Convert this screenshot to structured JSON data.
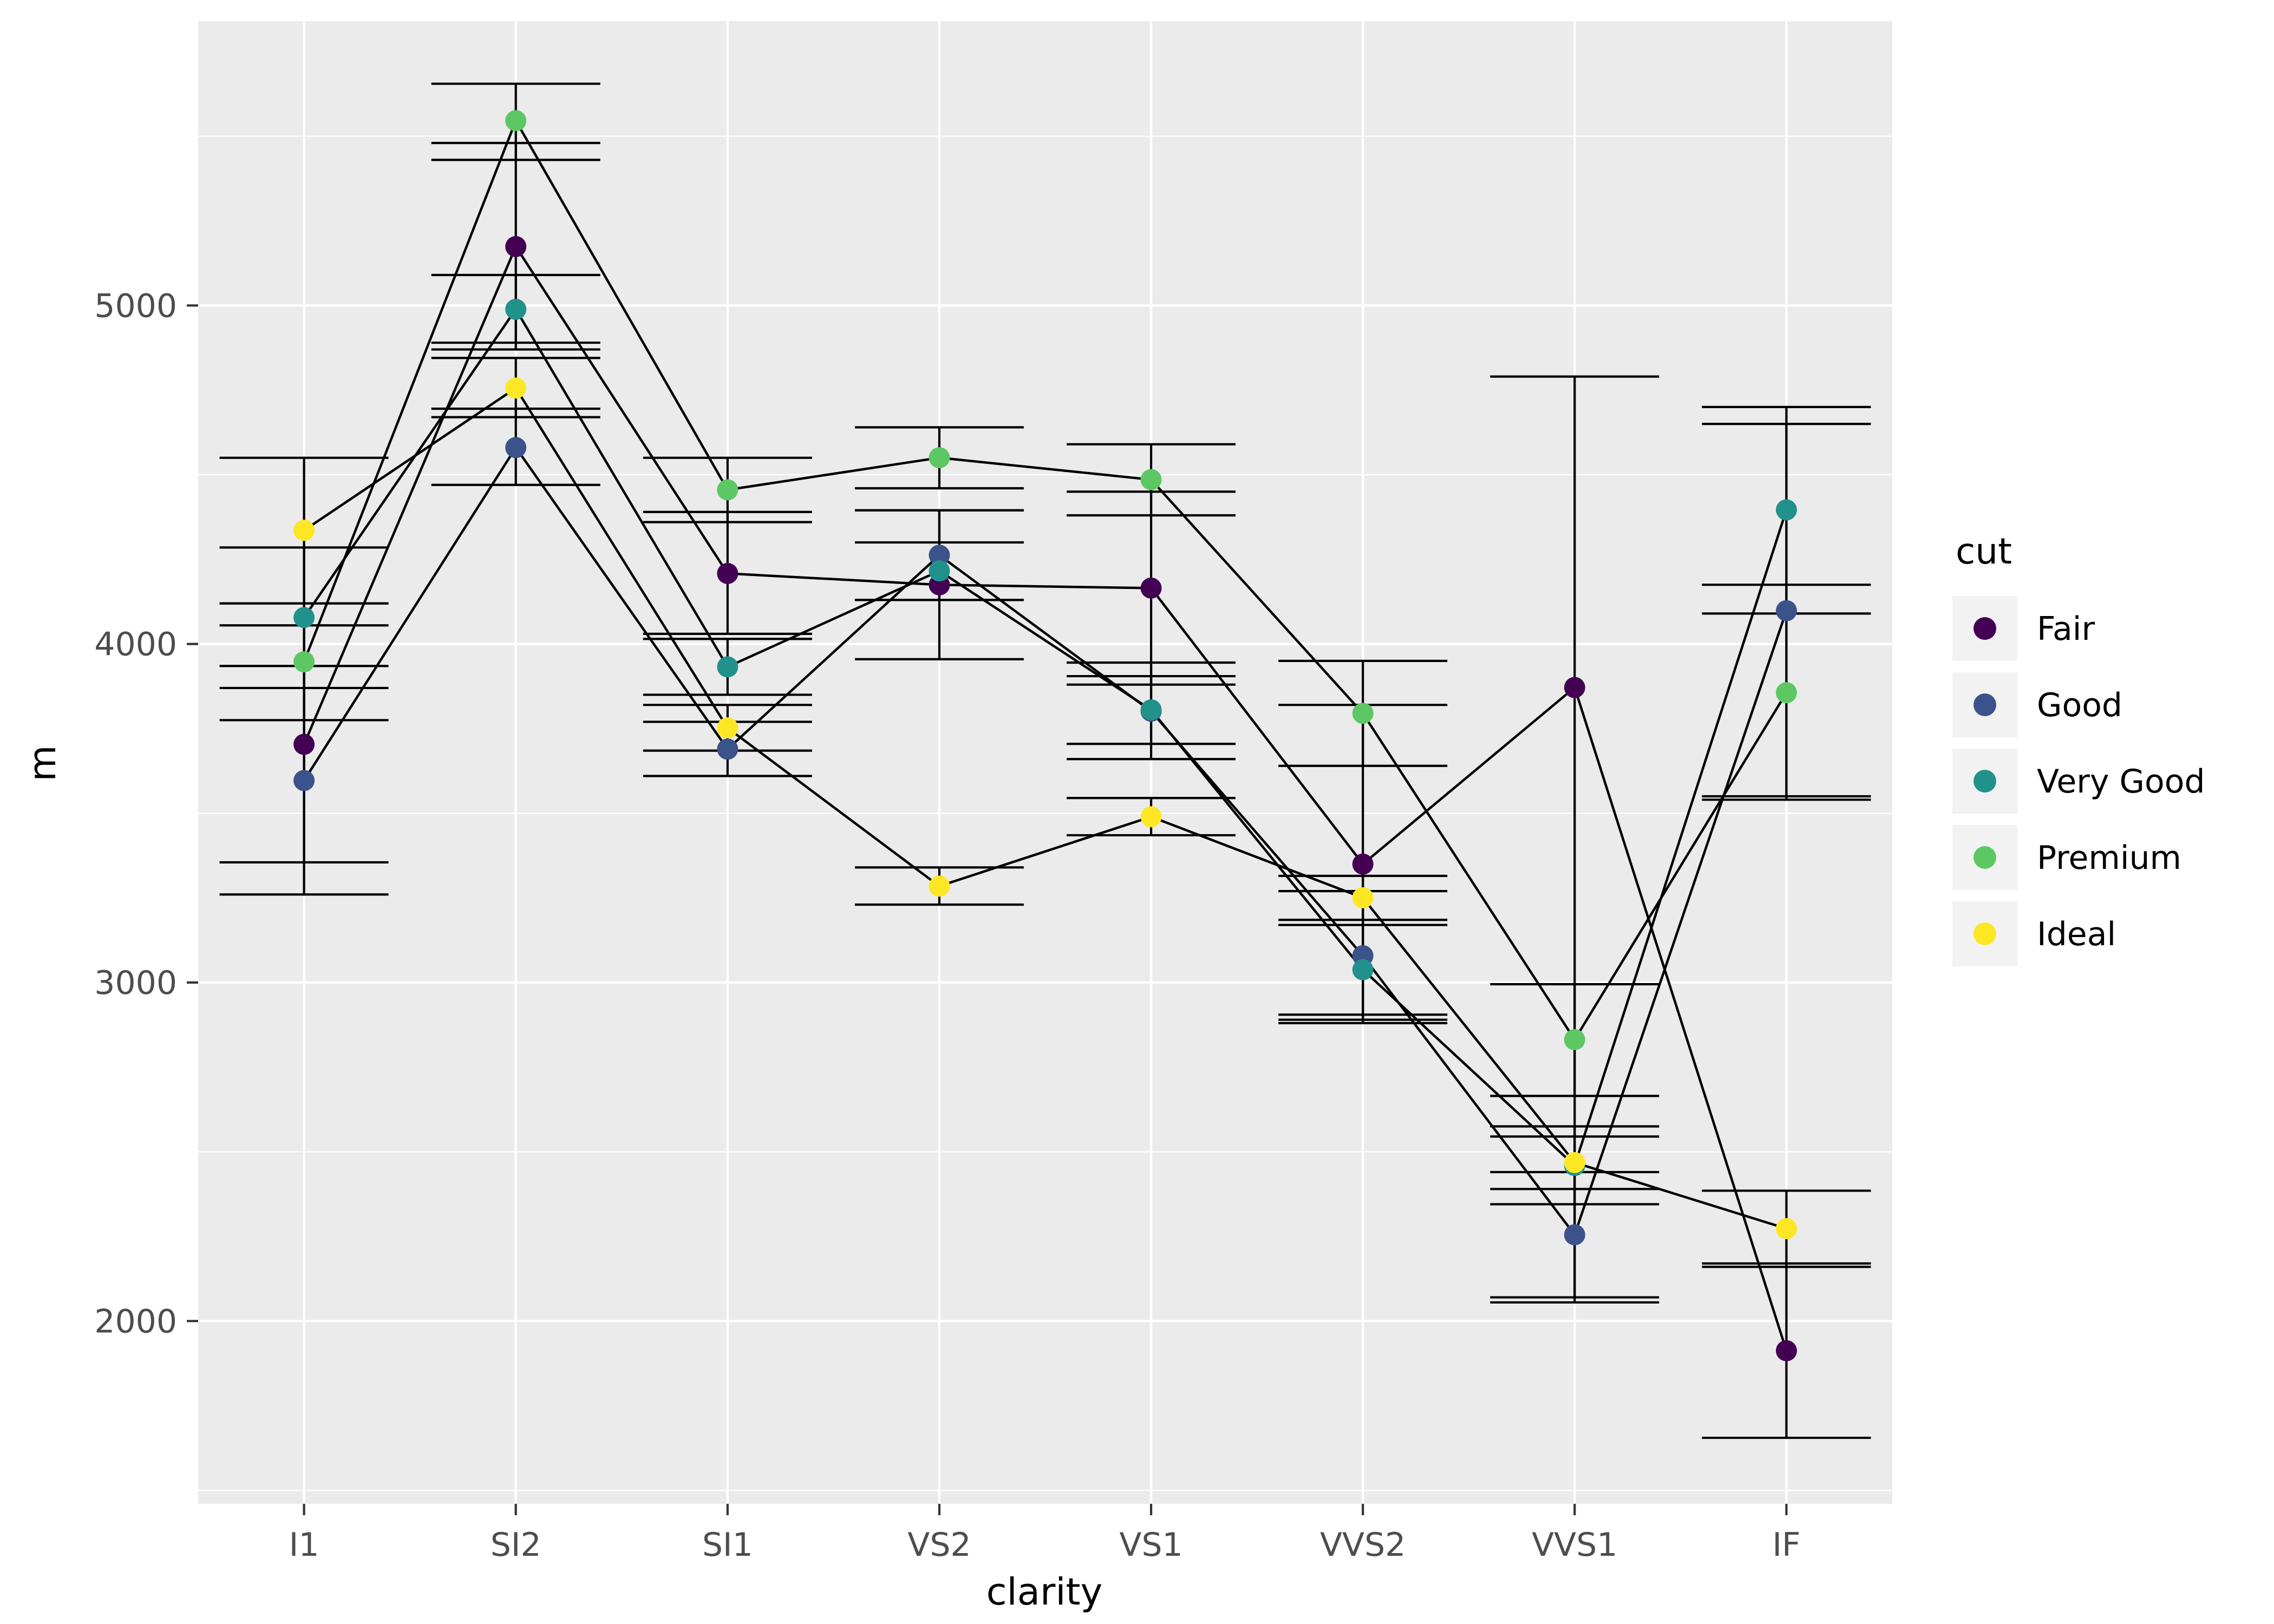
{
  "chart_data": {
    "type": "line",
    "title": "",
    "xlabel": "clarity",
    "ylabel": "m",
    "categories": [
      "I1",
      "SI2",
      "SI1",
      "VS2",
      "VS1",
      "VVS2",
      "VVS1",
      "IF"
    ],
    "y_ticks": [
      2000,
      3000,
      4000,
      5000
    ],
    "y_tick_labels": [
      "2000",
      "3000",
      "4000",
      "5000"
    ],
    "y_minor_ticks": [
      1500,
      2500,
      3500,
      4500,
      5500
    ],
    "ylim": [
      1460,
      5840
    ],
    "grid": "on",
    "legend": {
      "title": "cut",
      "position": "right"
    },
    "theme": {
      "panel_bg": "#EBEBEB",
      "grid_major": "#FFFFFF",
      "grid_minor": "#FFFFFF",
      "tick_label_color": "#4D4D4D",
      "axis_title_color": "#000000",
      "line_color": "#000000",
      "errorbar_color": "#000000",
      "legend_key_bg": "#F2F2F2"
    },
    "series": [
      {
        "name": "Fair",
        "color": "#440154",
        "values": [
          3703.5,
          5173.9,
          4208.3,
          4174.7,
          4165.1,
          3349.8,
          3871.4,
          1912.3
        ],
        "ci_low": [
          3355,
          4870,
          4030,
          3955,
          3880,
          2880,
          2055,
          1655
        ],
        "ci_high": [
          4055,
          5480,
          4390,
          4395,
          4450,
          3820,
          4790,
          2170
        ]
      },
      {
        "name": "Good",
        "color": "#3B528B",
        "values": [
          3596.6,
          4580.3,
          3689.5,
          4262.2,
          3801.4,
          3079.1,
          2254.8,
          4098.3
        ],
        "ci_low": [
          3260,
          4470,
          3610,
          4130,
          3660,
          2890,
          2070,
          3550
        ],
        "ci_high": [
          3935,
          4695,
          3770,
          4395,
          3945,
          3270,
          2440,
          4650
        ]
      },
      {
        "name": "Very Good",
        "color": "#21918C",
        "values": [
          4078.2,
          4988.7,
          3932.4,
          4215.8,
          3805.4,
          3037.8,
          2459.4,
          4396.2
        ],
        "ci_low": [
          3870,
          4890,
          3850,
          4130,
          3705,
          2905,
          2345,
          4090
        ],
        "ci_high": [
          4285,
          5090,
          4015,
          4300,
          3905,
          3170,
          2575,
          4700
        ]
      },
      {
        "name": "Premium",
        "color": "#5DC863",
        "values": [
          3947.3,
          5545.9,
          4455.3,
          4550.3,
          4485.5,
          3795.1,
          2831.2,
          3856.1
        ],
        "ci_low": [
          3775,
          5430,
          4360,
          4460,
          4380,
          3640,
          2665,
          3540
        ],
        "ci_high": [
          4120,
          5655,
          4550,
          4640,
          4590,
          3950,
          2995,
          4175
        ]
      },
      {
        "name": "Ideal",
        "color": "#FDE725",
        "values": [
          4335.7,
          4756.0,
          3752.1,
          3284.6,
          3489.7,
          3250.3,
          2468.1,
          2272.9
        ],
        "ci_low": [
          4120,
          4670,
          3685,
          3230,
          3435,
          3185,
          2390,
          2160
        ],
        "ci_high": [
          4550,
          4845,
          3820,
          3340,
          3545,
          3315,
          2545,
          2385
        ]
      }
    ]
  }
}
